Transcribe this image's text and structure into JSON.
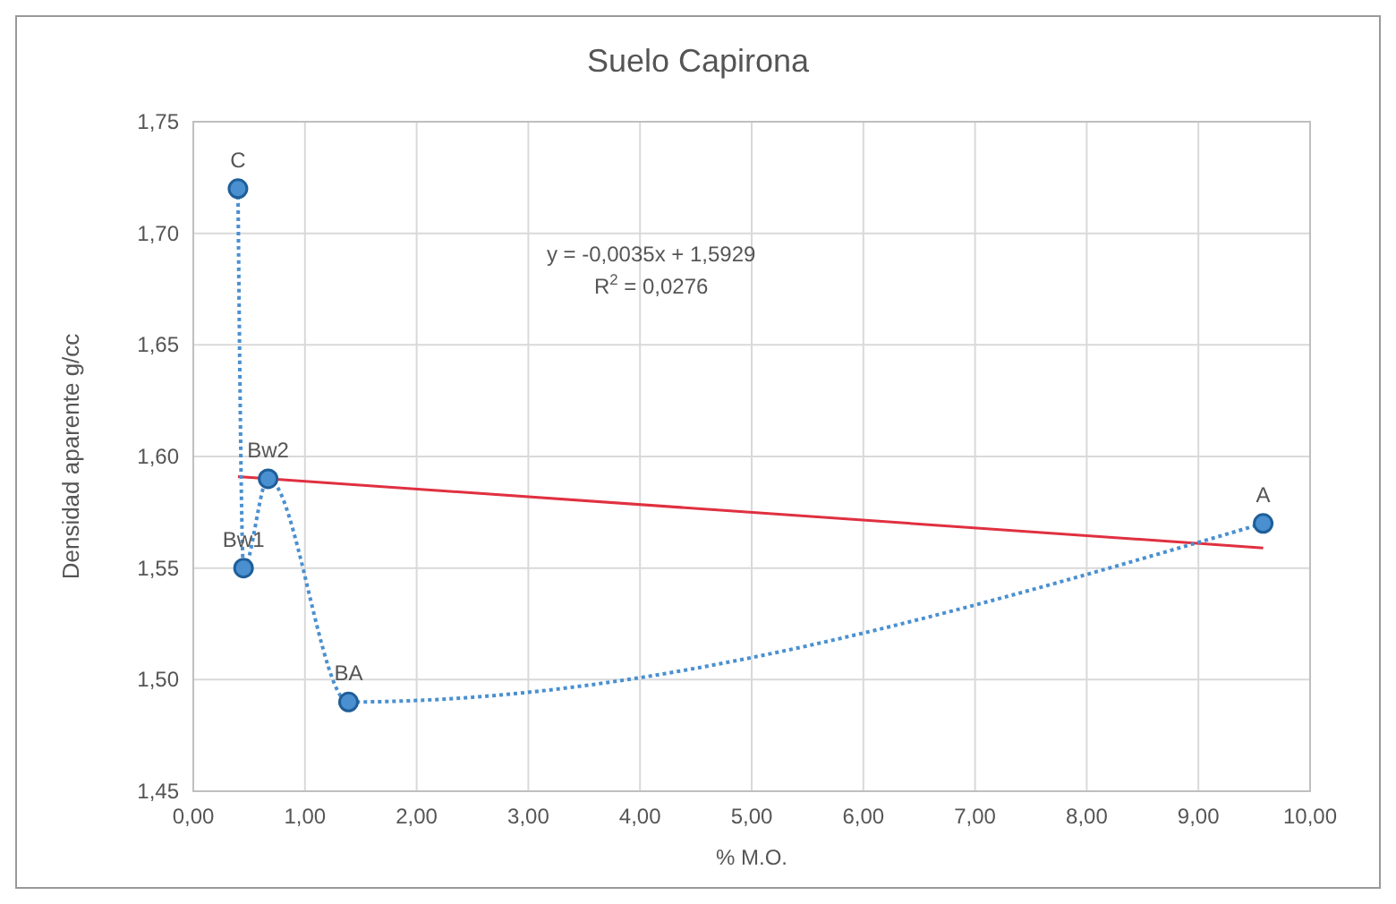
{
  "chart_data": {
    "type": "scatter",
    "title": "Suelo Capirona",
    "xlabel": "% M.O.",
    "ylabel": "Densidad aparente g/cc",
    "xlim": [
      0,
      10
    ],
    "ylim": [
      1.45,
      1.75
    ],
    "xticks": [
      {
        "value": 0,
        "label": "0,00"
      },
      {
        "value": 1,
        "label": "1,00"
      },
      {
        "value": 2,
        "label": "2,00"
      },
      {
        "value": 3,
        "label": "3,00"
      },
      {
        "value": 4,
        "label": "4,00"
      },
      {
        "value": 5,
        "label": "5,00"
      },
      {
        "value": 6,
        "label": "6,00"
      },
      {
        "value": 7,
        "label": "7,00"
      },
      {
        "value": 8,
        "label": "8,00"
      },
      {
        "value": 9,
        "label": "9,00"
      },
      {
        "value": 10,
        "label": "10,00"
      }
    ],
    "yticks": [
      {
        "value": 1.45,
        "label": "1,45"
      },
      {
        "value": 1.5,
        "label": "1,50"
      },
      {
        "value": 1.55,
        "label": "1,55"
      },
      {
        "value": 1.6,
        "label": "1,60"
      },
      {
        "value": 1.65,
        "label": "1,65"
      },
      {
        "value": 1.7,
        "label": "1,70"
      },
      {
        "value": 1.75,
        "label": "1,75"
      }
    ],
    "grid": true,
    "marker": "circle",
    "series": [
      {
        "color": "#4a90d0",
        "line_style": "dotted",
        "x": [
          0.4,
          0.45,
          0.67,
          1.39,
          9.58
        ],
        "values": [
          1.72,
          1.55,
          1.59,
          1.49,
          1.57
        ]
      },
      {
        "type": "line",
        "color": "#e03040",
        "marker": "none",
        "line_style": "solid",
        "x": [
          0.4,
          9.58
        ],
        "values": [
          1.591,
          1.559
        ]
      }
    ],
    "annotations": [
      {
        "text": "C",
        "x": 0.4,
        "y": 1.72
      },
      {
        "text": "Bw1",
        "x": 0.45,
        "y": 1.55
      },
      {
        "text": "Bw2",
        "x": 0.67,
        "y": 1.59
      },
      {
        "text": "BA",
        "x": 1.39,
        "y": 1.49
      },
      {
        "text": "A",
        "x": 9.58,
        "y": 1.57
      },
      "y = -0,0035x + 1,5929",
      "R$^{2}$ = 0,0276"
    ]
  }
}
